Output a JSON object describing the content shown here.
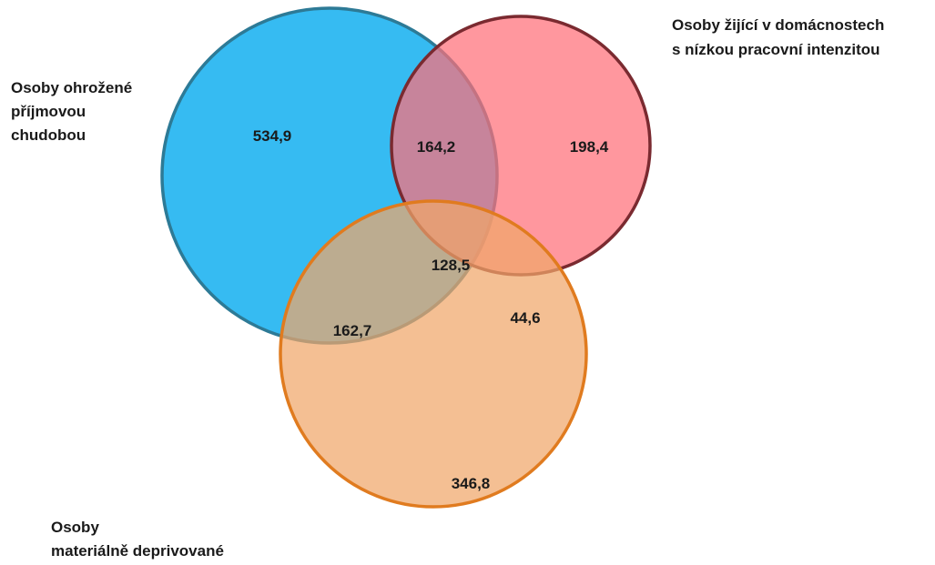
{
  "sets": {
    "poverty": {
      "label_lines": [
        "Osoby ohrožené",
        "příjmovou",
        "chudobou"
      ],
      "fill": "#1ab2f0",
      "stroke": "#2d7a96"
    },
    "low_work": {
      "label_lines": [
        "Osoby žijící v domácnostech",
        "s nízkou pracovní intenzitou"
      ],
      "fill": "#ff6f78",
      "stroke": "#7a2a30"
    },
    "material": {
      "label_lines": [
        "Osoby",
        "materiálně deprivované"
      ],
      "fill": "#f0a66a",
      "stroke": "#e07b1f"
    }
  },
  "regions": {
    "poverty_only": "534,9",
    "poverty_and_low_work": "164,2",
    "low_work_only": "198,4",
    "all_three": "128,5",
    "poverty_and_material": "162,7",
    "low_work_and_material": "44,6",
    "material_only": "346,8"
  }
}
